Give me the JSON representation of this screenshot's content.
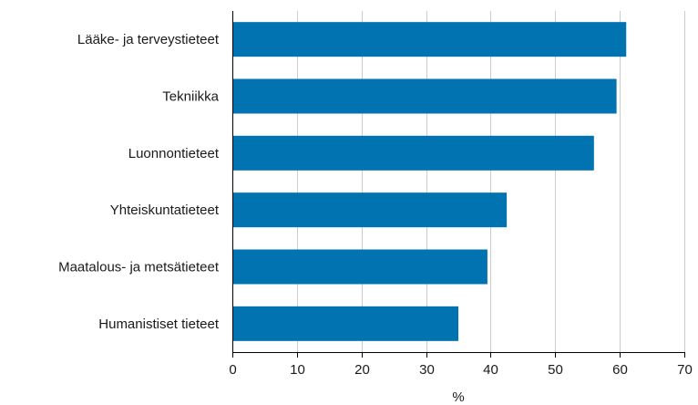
{
  "chart_data": {
    "type": "bar",
    "orientation": "horizontal",
    "categories": [
      "Lääke- ja terveystieteet",
      "Tekniikka",
      "Luonnontieteet",
      "Yhteiskuntatieteet",
      "Maatalous- ja metsätieteet",
      "Humanistiset tieteet"
    ],
    "values": [
      61,
      59.5,
      56,
      42.5,
      39.5,
      35
    ],
    "title": "",
    "xlabel": "%",
    "ylabel": "",
    "xlim": [
      0,
      70
    ],
    "xticks": [
      "0",
      "10",
      "20",
      "30",
      "40",
      "50",
      "60",
      "70"
    ],
    "grid": "vertical",
    "legend": "none",
    "bar_color": "#0073b0"
  }
}
